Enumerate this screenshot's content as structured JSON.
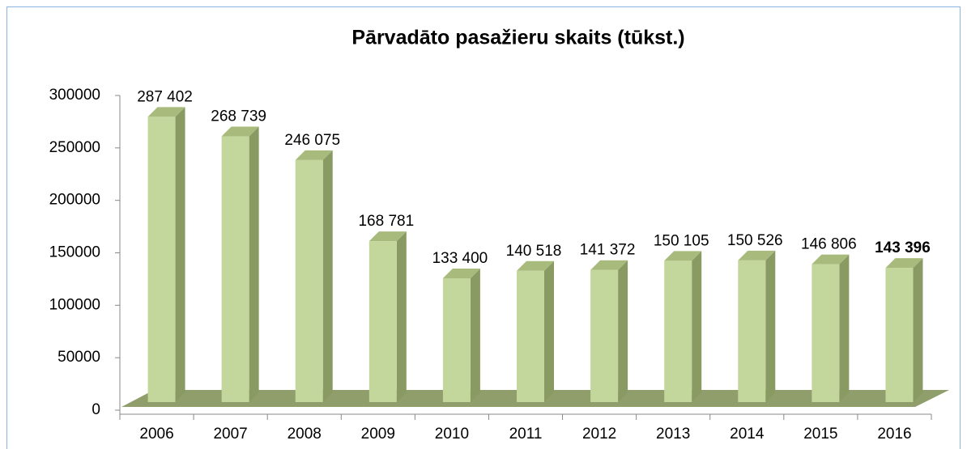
{
  "chart_data": {
    "type": "bar3d",
    "title": "Pārvadāto pasažieru skaits (tūkst.)",
    "categories": [
      "2006",
      "2007",
      "2008",
      "2009",
      "2010",
      "2011",
      "2012",
      "2013",
      "2014",
      "2015",
      "2016"
    ],
    "values": [
      287402,
      268739,
      246075,
      168781,
      133400,
      140518,
      141372,
      150105,
      150526,
      146806,
      143396
    ],
    "value_labels": [
      "287 402",
      "268 739",
      "246 075",
      "168 781",
      "133 400",
      "140 518",
      "141 372",
      "150 105",
      "150 526",
      "146 806",
      "143 396"
    ],
    "color": "#c3d69b",
    "ylim": [
      0,
      300000
    ],
    "yticks": [
      0,
      50000,
      100000,
      150000,
      200000,
      250000,
      300000
    ]
  }
}
